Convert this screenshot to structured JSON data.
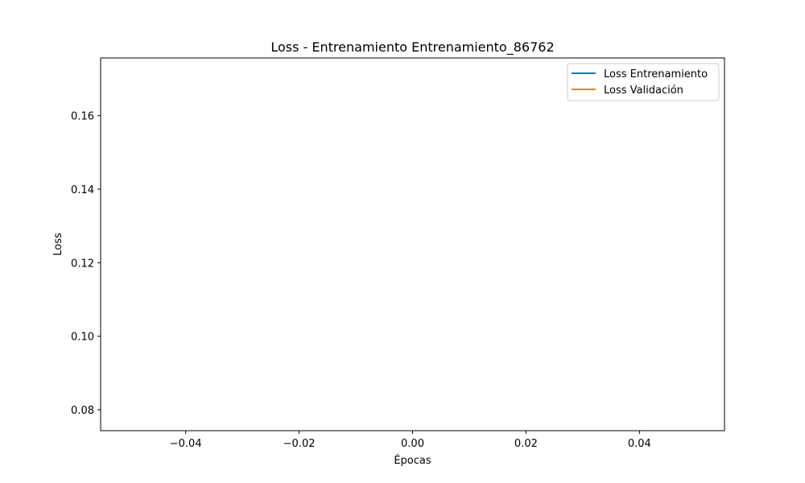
{
  "chart_data": {
    "type": "line",
    "title": "Loss - Entrenamiento Entrenamiento_86762",
    "xlabel": "Épocas",
    "ylabel": "Loss",
    "xlim": [
      -0.055,
      0.055
    ],
    "ylim": [
      0.0743,
      0.1757
    ],
    "xticks": [
      -0.04,
      -0.02,
      0.0,
      0.02,
      0.04
    ],
    "xtick_labels": [
      "−0.04",
      "−0.02",
      "0.00",
      "0.02",
      "0.04"
    ],
    "yticks": [
      0.08,
      0.1,
      0.12,
      0.14,
      0.16
    ],
    "ytick_labels": [
      "0.08",
      "0.10",
      "0.12",
      "0.14",
      "0.16"
    ],
    "grid": false,
    "legend_position": "top-right",
    "series": [
      {
        "name": "Loss Entrenamiento",
        "color": "#1f77b4",
        "x": [],
        "y": []
      },
      {
        "name": "Loss Validación",
        "color": "#ff7f0e",
        "x": [],
        "y": []
      }
    ]
  }
}
